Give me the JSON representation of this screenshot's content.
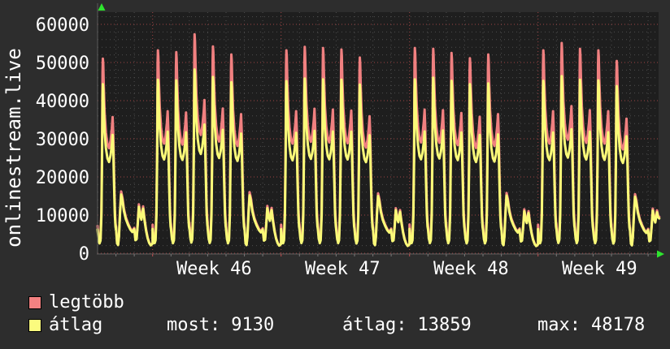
{
  "title": "onlinestream.live",
  "colors": {
    "background": "#2d2d2d",
    "plot_background": "#1e1e1e",
    "grid_minor": "#4d4d4d",
    "grid_major": "#9e4444",
    "axis": "#5a5a5a",
    "arrow": "#2ee52e",
    "text": "#ffffff",
    "tick_day": "#777777",
    "tick_week": "#c05050"
  },
  "legend": [
    {
      "label": "legtöbb",
      "color": "#f28181"
    },
    {
      "label": "átlag",
      "color": "#fbfb7e"
    }
  ],
  "stats": [
    {
      "label": "most:",
      "value": "9130"
    },
    {
      "label": "átlag:",
      "value": "13859"
    },
    {
      "label": "max:",
      "value": "48178"
    }
  ],
  "chart_data": {
    "type": "line",
    "title": "onlinestream.live",
    "legend_position": "bottom-left",
    "grid": true,
    "series_meta": [
      {
        "name": "legtöbb",
        "key": "max",
        "color": "#f08080",
        "width": 3
      },
      {
        "name": "átlag",
        "key": "avg",
        "color": "#fafa78",
        "width": 3
      }
    ],
    "y_axis": {
      "min": 0,
      "max": 63000,
      "major_step": 10000,
      "minor_step": 2000,
      "ticks": [
        {
          "v": 0,
          "label": "0"
        },
        {
          "v": 10000,
          "label": "10000"
        },
        {
          "v": 20000,
          "label": "20000"
        },
        {
          "v": 30000,
          "label": "30000"
        },
        {
          "v": 40000,
          "label": "40000"
        },
        {
          "v": 50000,
          "label": "50000"
        },
        {
          "v": 60000,
          "label": "60000"
        }
      ]
    },
    "x_axis": {
      "unit": "day",
      "days_total": 30.6,
      "week_start_days": [
        3,
        10,
        17,
        24
      ],
      "ticks": [
        {
          "day_center": 6.35,
          "label": "Week 46"
        },
        {
          "day_center": 13.35,
          "label": "Week 47"
        },
        {
          "day_center": 20.35,
          "label": "Week 48"
        },
        {
          "day_center": 27.35,
          "label": "Week 49"
        }
      ]
    },
    "summary": {
      "most_current": 9130,
      "atlag_average": 13859,
      "max_of_avg": 48178
    },
    "days": [
      {
        "dow": "Fri",
        "week": 45,
        "max": 51000,
        "avg": 44300,
        "shape": "weekday"
      },
      {
        "dow": "Sat",
        "week": 45,
        "max": 16200,
        "avg": 15400,
        "shape": "saturday"
      },
      {
        "dow": "Sun",
        "week": 45,
        "max": 12800,
        "avg": 12200,
        "shape": "sunday"
      },
      {
        "dow": "Mon",
        "week": 46,
        "max": 53200,
        "avg": 45500,
        "shape": "weekday"
      },
      {
        "dow": "Tue",
        "week": 46,
        "max": 52700,
        "avg": 45300,
        "shape": "weekday"
      },
      {
        "dow": "Wed",
        "week": 46,
        "max": 57400,
        "avg": 48178,
        "shape": "weekday"
      },
      {
        "dow": "Thu",
        "week": 46,
        "max": 54200,
        "avg": 46200,
        "shape": "weekday"
      },
      {
        "dow": "Fri",
        "week": 46,
        "max": 52100,
        "avg": 44800,
        "shape": "weekday"
      },
      {
        "dow": "Sat",
        "week": 46,
        "max": 16000,
        "avg": 15200,
        "shape": "saturday"
      },
      {
        "dow": "Sun",
        "week": 46,
        "max": 12400,
        "avg": 11800,
        "shape": "sunday"
      },
      {
        "dow": "Mon",
        "week": 47,
        "max": 53200,
        "avg": 45100,
        "shape": "weekday"
      },
      {
        "dow": "Tue",
        "week": 47,
        "max": 54100,
        "avg": 45800,
        "shape": "weekday"
      },
      {
        "dow": "Wed",
        "week": 47,
        "max": 53800,
        "avg": 45600,
        "shape": "weekday"
      },
      {
        "dow": "Thu",
        "week": 47,
        "max": 53400,
        "avg": 45500,
        "shape": "weekday"
      },
      {
        "dow": "Fri",
        "week": 47,
        "max": 51300,
        "avg": 44200,
        "shape": "weekday"
      },
      {
        "dow": "Sat",
        "week": 47,
        "max": 15700,
        "avg": 15000,
        "shape": "saturday"
      },
      {
        "dow": "Sun",
        "week": 47,
        "max": 11800,
        "avg": 11300,
        "shape": "sunday"
      },
      {
        "dow": "Mon",
        "week": 48,
        "max": 53800,
        "avg": 45600,
        "shape": "weekday"
      },
      {
        "dow": "Tue",
        "week": 48,
        "max": 53600,
        "avg": 46000,
        "shape": "weekday"
      },
      {
        "dow": "Wed",
        "week": 48,
        "max": 52500,
        "avg": 45200,
        "shape": "weekday"
      },
      {
        "dow": "Thu",
        "week": 48,
        "max": 51100,
        "avg": 44300,
        "shape": "weekday"
      },
      {
        "dow": "Fri",
        "week": 48,
        "max": 52100,
        "avg": 44500,
        "shape": "weekday"
      },
      {
        "dow": "Sat",
        "week": 48,
        "max": 15800,
        "avg": 15100,
        "shape": "saturday"
      },
      {
        "dow": "Sun",
        "week": 48,
        "max": 11500,
        "avg": 11000,
        "shape": "sunday"
      },
      {
        "dow": "Mon",
        "week": 49,
        "max": 53200,
        "avg": 45200,
        "shape": "weekday"
      },
      {
        "dow": "Tue",
        "week": 49,
        "max": 55100,
        "avg": 46400,
        "shape": "weekday"
      },
      {
        "dow": "Wed",
        "week": 49,
        "max": 53600,
        "avg": 45500,
        "shape": "weekday"
      },
      {
        "dow": "Thu",
        "week": 49,
        "max": 53200,
        "avg": 45300,
        "shape": "weekday"
      },
      {
        "dow": "Fri",
        "week": 49,
        "max": 50400,
        "avg": 43800,
        "shape": "weekday"
      },
      {
        "dow": "Sat",
        "week": 49,
        "max": 15500,
        "avg": 14800,
        "shape": "saturday"
      },
      {
        "dow": "Sun",
        "week": 49,
        "max": 11700,
        "avg": 11200,
        "shape": "sunday_end",
        "hours": 14.5
      }
    ],
    "shapes": {
      "weekday": [
        [
          0,
          0.14
        ],
        [
          1.2,
          0.085
        ],
        [
          2.6,
          0.058
        ],
        [
          3.8,
          0.075
        ],
        [
          5.0,
          0.22
        ],
        [
          5.9,
          0.55
        ],
        [
          6.5,
          0.93
        ],
        [
          6.9,
          1.0
        ],
        [
          7.4,
          0.97
        ],
        [
          8.1,
          0.86
        ],
        [
          9.3,
          0.72
        ],
        [
          11.0,
          0.62
        ],
        [
          13.0,
          0.56
        ],
        [
          15.0,
          0.54
        ],
        [
          17.0,
          0.58
        ],
        [
          18.6,
          0.64
        ],
        [
          19.7,
          0.7
        ],
        [
          20.6,
          0.6
        ],
        [
          21.6,
          0.4
        ],
        [
          22.6,
          0.22
        ],
        [
          23.5,
          0.155
        ],
        [
          24,
          0.14
        ]
      ],
      "saturday": [
        [
          0,
          0.45
        ],
        [
          1.5,
          0.17
        ],
        [
          2.8,
          0.14
        ],
        [
          4.0,
          0.28
        ],
        [
          5.5,
          0.7
        ],
        [
          6.8,
          1.0
        ],
        [
          8.5,
          0.9
        ],
        [
          10.5,
          0.72
        ],
        [
          13.0,
          0.58
        ],
        [
          16.0,
          0.48
        ],
        [
          19.0,
          0.4
        ],
        [
          21.5,
          0.36
        ],
        [
          23.5,
          0.4
        ],
        [
          24,
          0.41
        ]
      ],
      "sunday": [
        [
          0,
          0.52
        ],
        [
          1.5,
          0.28
        ],
        [
          3.0,
          0.3
        ],
        [
          4.5,
          0.62
        ],
        [
          6.0,
          1.0
        ],
        [
          7.8,
          0.8
        ],
        [
          9.3,
          0.72
        ],
        [
          11.5,
          0.96
        ],
        [
          13.5,
          0.7
        ],
        [
          15.5,
          0.48
        ],
        [
          17.5,
          0.32
        ],
        [
          19.5,
          0.22
        ],
        [
          21.5,
          0.17
        ],
        [
          23.0,
          0.19
        ],
        [
          24,
          0.21
        ]
      ],
      "sunday_end": [
        [
          0,
          0.52
        ],
        [
          1.5,
          0.28
        ],
        [
          3.0,
          0.3
        ],
        [
          4.5,
          0.62
        ],
        [
          6.0,
          1.0
        ],
        [
          7.8,
          0.8
        ],
        [
          9.3,
          0.72
        ],
        [
          11.5,
          0.96
        ],
        [
          13.0,
          0.84
        ],
        [
          14.5,
          0.815
        ]
      ]
    }
  }
}
